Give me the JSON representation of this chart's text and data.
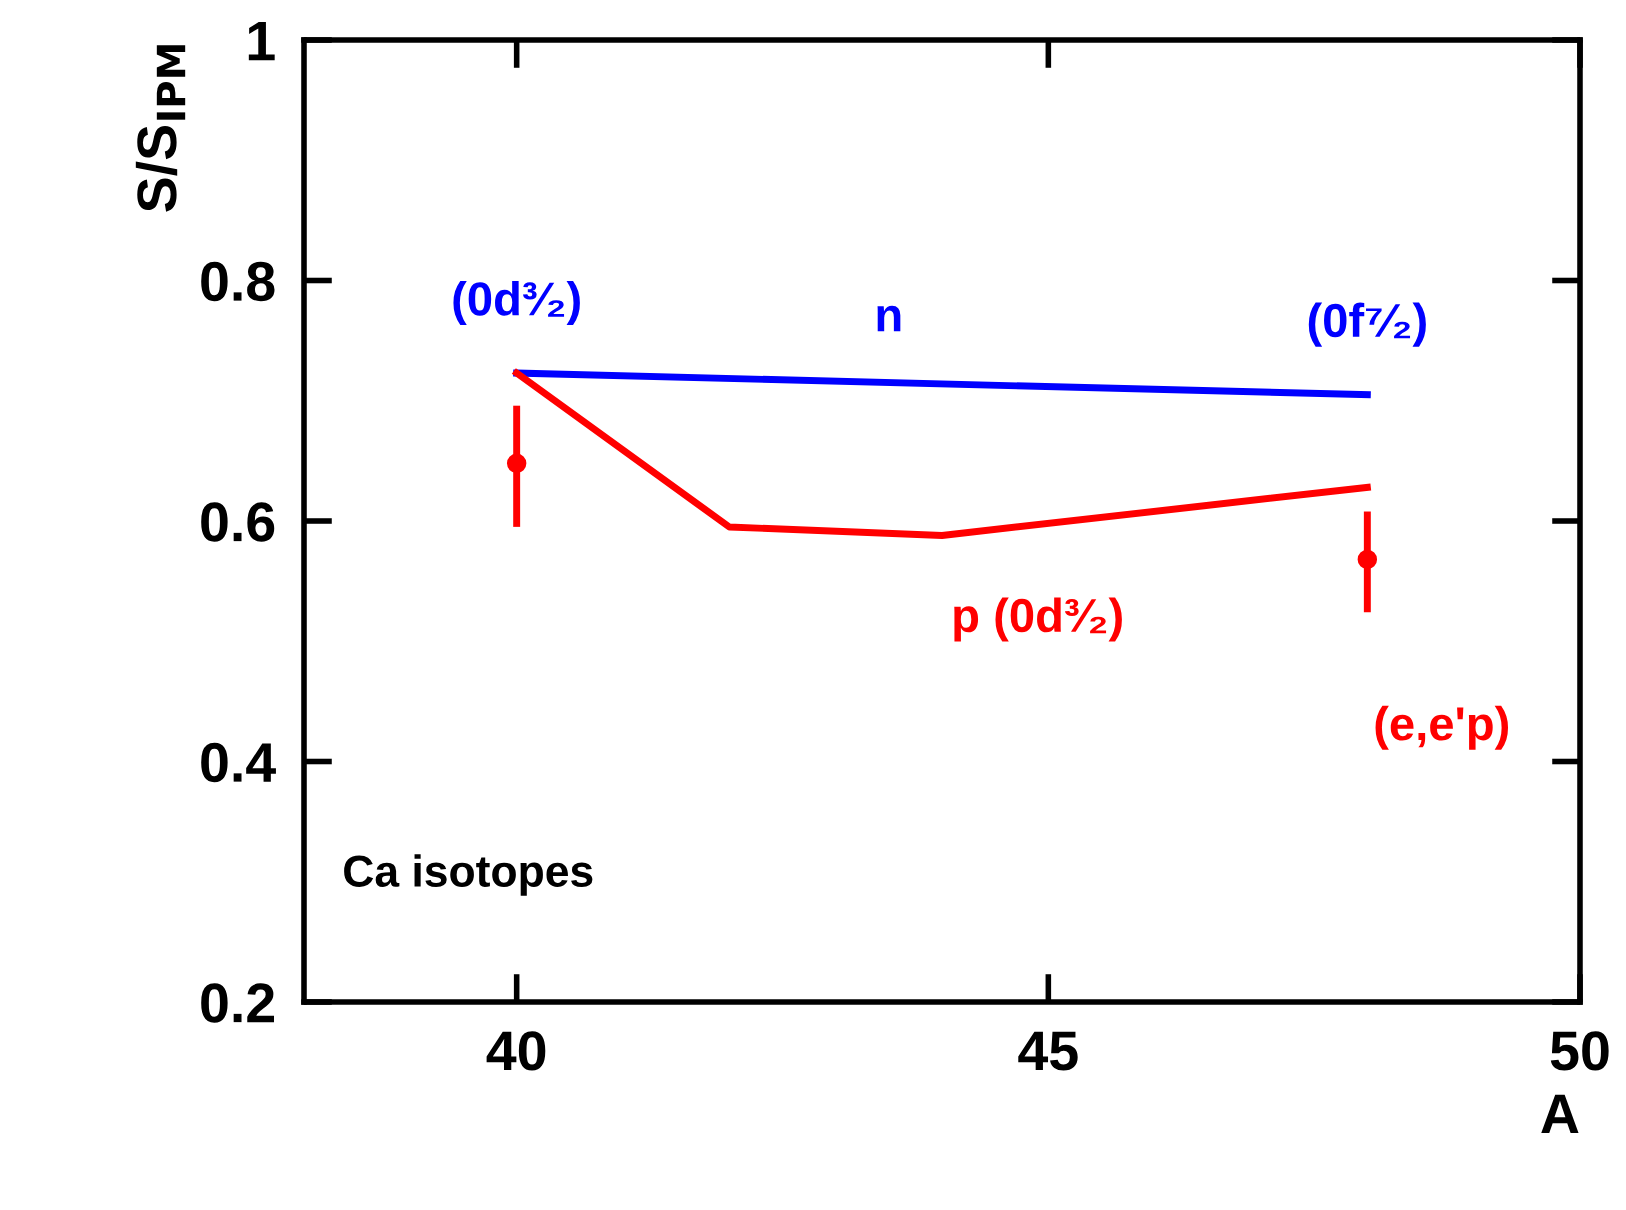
{
  "chart_data": {
    "type": "line",
    "xlabel": "A",
    "ylabel": "S/S$_{IPM}$",
    "xlim": [
      38,
      50
    ],
    "xticks": [
      40,
      45,
      50
    ],
    "ylim": [
      0.2,
      1
    ],
    "yticks": [
      0.2,
      0.4,
      0.6,
      0.8,
      1
    ],
    "grid": false,
    "marker": "none",
    "line_style": "solid",
    "series": [
      {
        "name": "n",
        "color": "#0000ff",
        "x": [
          40,
          48
        ],
        "values": [
          0.723,
          0.705
        ]
      },
      {
        "name": "p (0d³⁄₂)",
        "color": "#ff0000",
        "x": [
          40,
          42,
          44,
          48
        ],
        "values": [
          0.723,
          0.595,
          0.588,
          0.628
        ]
      },
      {
        "name": "(e,e'p)",
        "type": "scatter",
        "marker": "circle",
        "color": "#ff0000",
        "x": [
          40,
          48
        ],
        "values": [
          0.648,
          0.568
        ],
        "errors": [
          [
            0.598,
            0.693
          ],
          [
            0.527,
            0.605
          ]
        ]
      }
    ],
    "annotations": [
      {
        "text": "(0d³⁄₂)",
        "x": 40,
        "y": 0.723
      },
      {
        "text": "(0f⁷⁄₂)",
        "x": 48,
        "y": 0.705
      },
      "Ca isotopes"
    ]
  }
}
